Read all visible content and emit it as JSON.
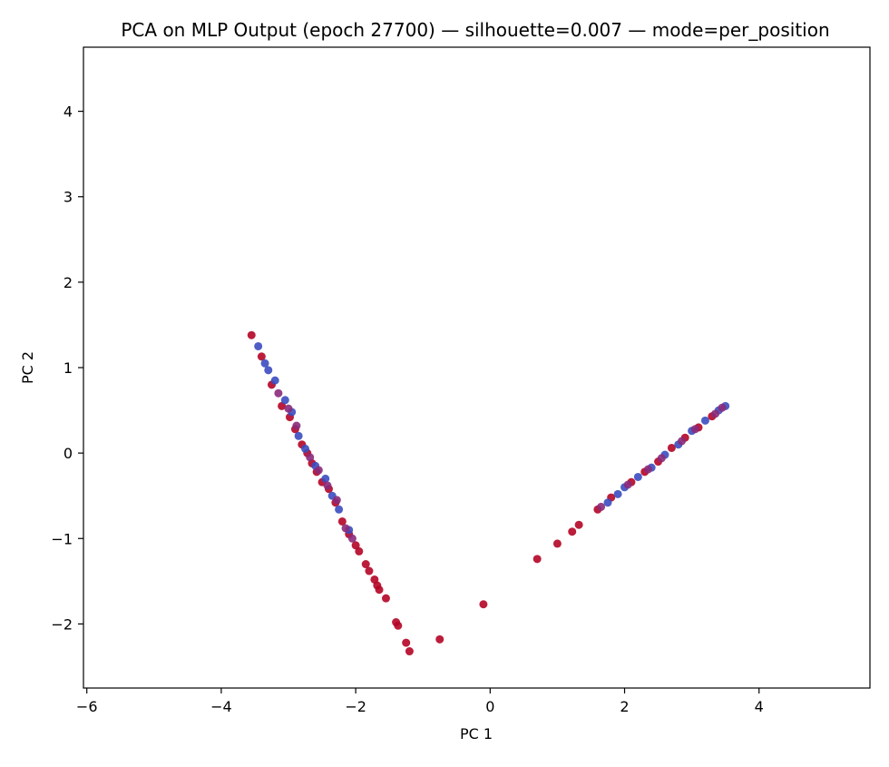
{
  "chart_data": {
    "type": "scatter",
    "title": "PCA on MLP Output (epoch 27700) — silhouette=0.007 — mode=per_position",
    "xlabel": "PC 1",
    "ylabel": "PC 2",
    "xlim": [
      -6.05,
      5.65
    ],
    "ylim": [
      -2.75,
      4.75
    ],
    "xticks": [
      -6,
      -4,
      -2,
      0,
      2,
      4
    ],
    "yticks": [
      -2,
      -1,
      0,
      1,
      2,
      3,
      4
    ],
    "grid": false,
    "legend": "none",
    "colors": {
      "blue": "#3b4cc0",
      "red": "#b40426",
      "mid": "#8a2a7a"
    },
    "series": [
      {
        "color_key": "red",
        "points": [
          [
            -3.55,
            1.38
          ],
          [
            -3.4,
            1.13
          ],
          [
            -3.25,
            0.8
          ],
          [
            -3.1,
            0.55
          ],
          [
            -2.98,
            0.42
          ],
          [
            -2.9,
            0.28
          ],
          [
            -2.8,
            0.1
          ],
          [
            -2.72,
            0.0
          ],
          [
            -2.65,
            -0.12
          ],
          [
            -2.58,
            -0.22
          ],
          [
            -2.5,
            -0.34
          ],
          [
            -2.4,
            -0.42
          ],
          [
            -2.3,
            -0.58
          ],
          [
            -2.2,
            -0.8
          ],
          [
            -2.1,
            -0.95
          ],
          [
            -2.0,
            -1.08
          ],
          [
            -1.95,
            -1.15
          ],
          [
            -1.85,
            -1.3
          ],
          [
            -1.8,
            -1.38
          ],
          [
            -1.72,
            -1.48
          ],
          [
            -1.68,
            -1.55
          ],
          [
            -1.65,
            -1.6
          ],
          [
            -1.55,
            -1.7
          ],
          [
            -1.4,
            -1.98
          ],
          [
            -1.37,
            -2.02
          ],
          [
            -1.25,
            -2.22
          ],
          [
            -1.2,
            -2.32
          ],
          [
            -0.75,
            -2.18
          ],
          [
            -0.1,
            -1.77
          ],
          [
            0.7,
            -1.24
          ],
          [
            1.0,
            -1.06
          ],
          [
            1.22,
            -0.92
          ],
          [
            1.32,
            -0.84
          ],
          [
            1.6,
            -0.66
          ],
          [
            1.8,
            -0.52
          ],
          [
            2.1,
            -0.34
          ],
          [
            2.3,
            -0.22
          ],
          [
            2.5,
            -0.1
          ],
          [
            2.7,
            0.06
          ],
          [
            2.9,
            0.18
          ],
          [
            3.1,
            0.3
          ],
          [
            3.3,
            0.43
          ]
        ]
      },
      {
        "color_key": "blue",
        "points": [
          [
            -3.45,
            1.25
          ],
          [
            -3.35,
            1.05
          ],
          [
            -3.3,
            0.97
          ],
          [
            -3.2,
            0.85
          ],
          [
            -3.05,
            0.62
          ],
          [
            -2.95,
            0.48
          ],
          [
            -2.85,
            0.2
          ],
          [
            -2.75,
            0.05
          ],
          [
            -2.6,
            -0.15
          ],
          [
            -2.45,
            -0.3
          ],
          [
            -2.35,
            -0.5
          ],
          [
            -2.25,
            -0.66
          ],
          [
            -2.1,
            -0.9
          ],
          [
            1.75,
            -0.58
          ],
          [
            1.9,
            -0.48
          ],
          [
            2.0,
            -0.4
          ],
          [
            2.2,
            -0.28
          ],
          [
            2.4,
            -0.17
          ],
          [
            2.6,
            -0.02
          ],
          [
            2.8,
            0.1
          ],
          [
            3.0,
            0.26
          ],
          [
            3.2,
            0.38
          ],
          [
            3.4,
            0.5
          ],
          [
            3.5,
            0.55
          ]
        ]
      },
      {
        "color_key": "mid",
        "points": [
          [
            -3.15,
            0.7
          ],
          [
            -3.0,
            0.52
          ],
          [
            -2.88,
            0.32
          ],
          [
            -2.68,
            -0.05
          ],
          [
            -2.55,
            -0.2
          ],
          [
            -2.42,
            -0.38
          ],
          [
            -2.28,
            -0.55
          ],
          [
            -2.15,
            -0.88
          ],
          [
            -2.05,
            -1.0
          ],
          [
            1.65,
            -0.63
          ],
          [
            2.05,
            -0.37
          ],
          [
            2.35,
            -0.19
          ],
          [
            2.55,
            -0.06
          ],
          [
            2.85,
            0.14
          ],
          [
            3.05,
            0.28
          ],
          [
            3.35,
            0.46
          ],
          [
            3.45,
            0.53
          ]
        ]
      }
    ]
  }
}
